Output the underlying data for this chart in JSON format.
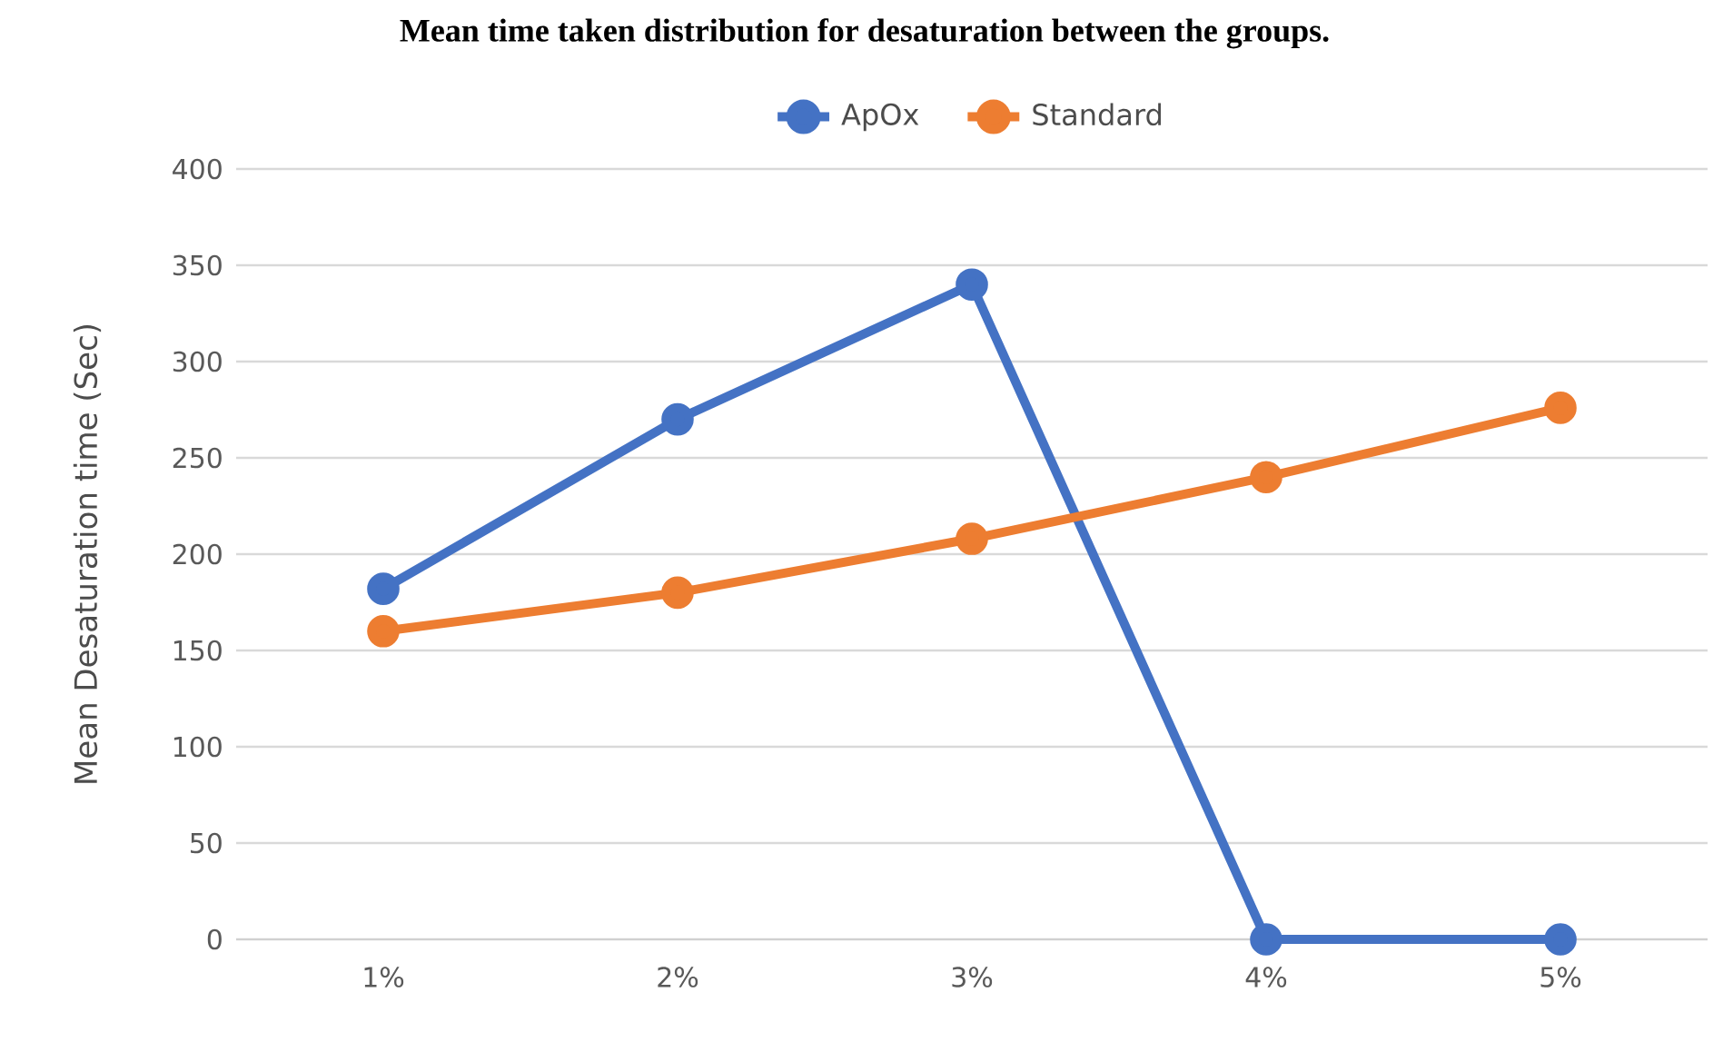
{
  "chart_data": {
    "type": "line",
    "title": "Mean time taken distribution for desaturation between the groups.",
    "ylabel": "Mean Desaturation time (Sec)",
    "categories": [
      "1%",
      "2%",
      "3%",
      "4%",
      "5%"
    ],
    "series": [
      {
        "name": "ApOx",
        "color": "#4472c4",
        "values": [
          182,
          270,
          340,
          0,
          0
        ]
      },
      {
        "name": "Standard",
        "color": "#ed7d31",
        "values": [
          160,
          180,
          208,
          240,
          276
        ]
      }
    ],
    "ylim": [
      0,
      400
    ],
    "yticks": [
      0,
      50,
      100,
      150,
      200,
      250,
      300,
      350,
      400
    ],
    "grid": "y",
    "legend": "top",
    "marker": "circle",
    "line_style": "solid"
  }
}
